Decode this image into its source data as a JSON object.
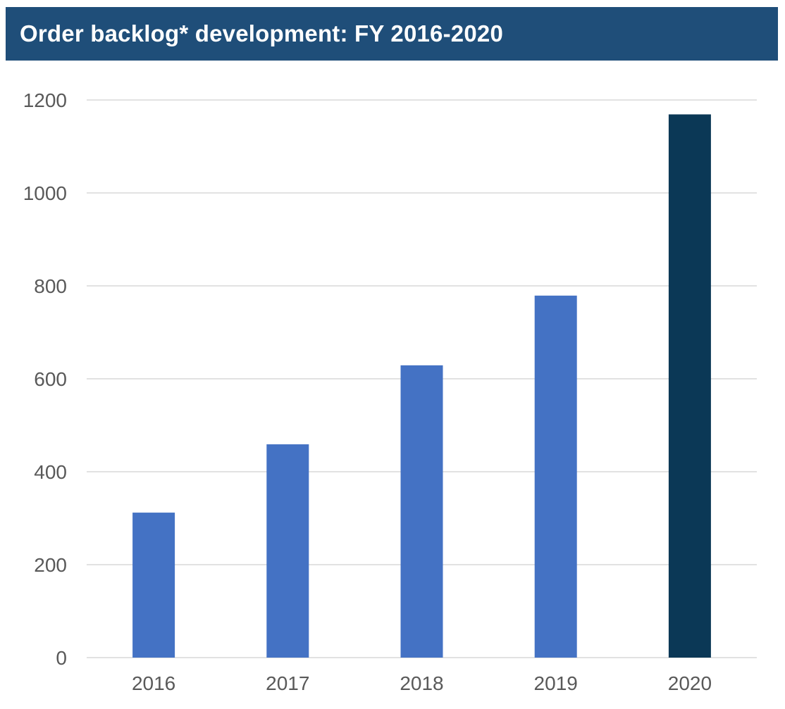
{
  "title": "Order backlog* development: FY 2016-2020",
  "colors": {
    "title_bar": "#1f4e79",
    "bar": "#4472c4",
    "bar_highlight": "#0b3856",
    "grid": "#d9d9d9",
    "tick_text": "#595959"
  },
  "chart_data": {
    "type": "bar",
    "categories": [
      "2016",
      "2017",
      "2018",
      "2019",
      "2020"
    ],
    "values": [
      312,
      459,
      629,
      779,
      1169
    ],
    "highlight_index": 4,
    "ylim": [
      0,
      1200
    ],
    "yticks": [
      0,
      200,
      400,
      600,
      800,
      1000,
      1200
    ],
    "grid": true,
    "xlabel": "",
    "ylabel": ""
  }
}
